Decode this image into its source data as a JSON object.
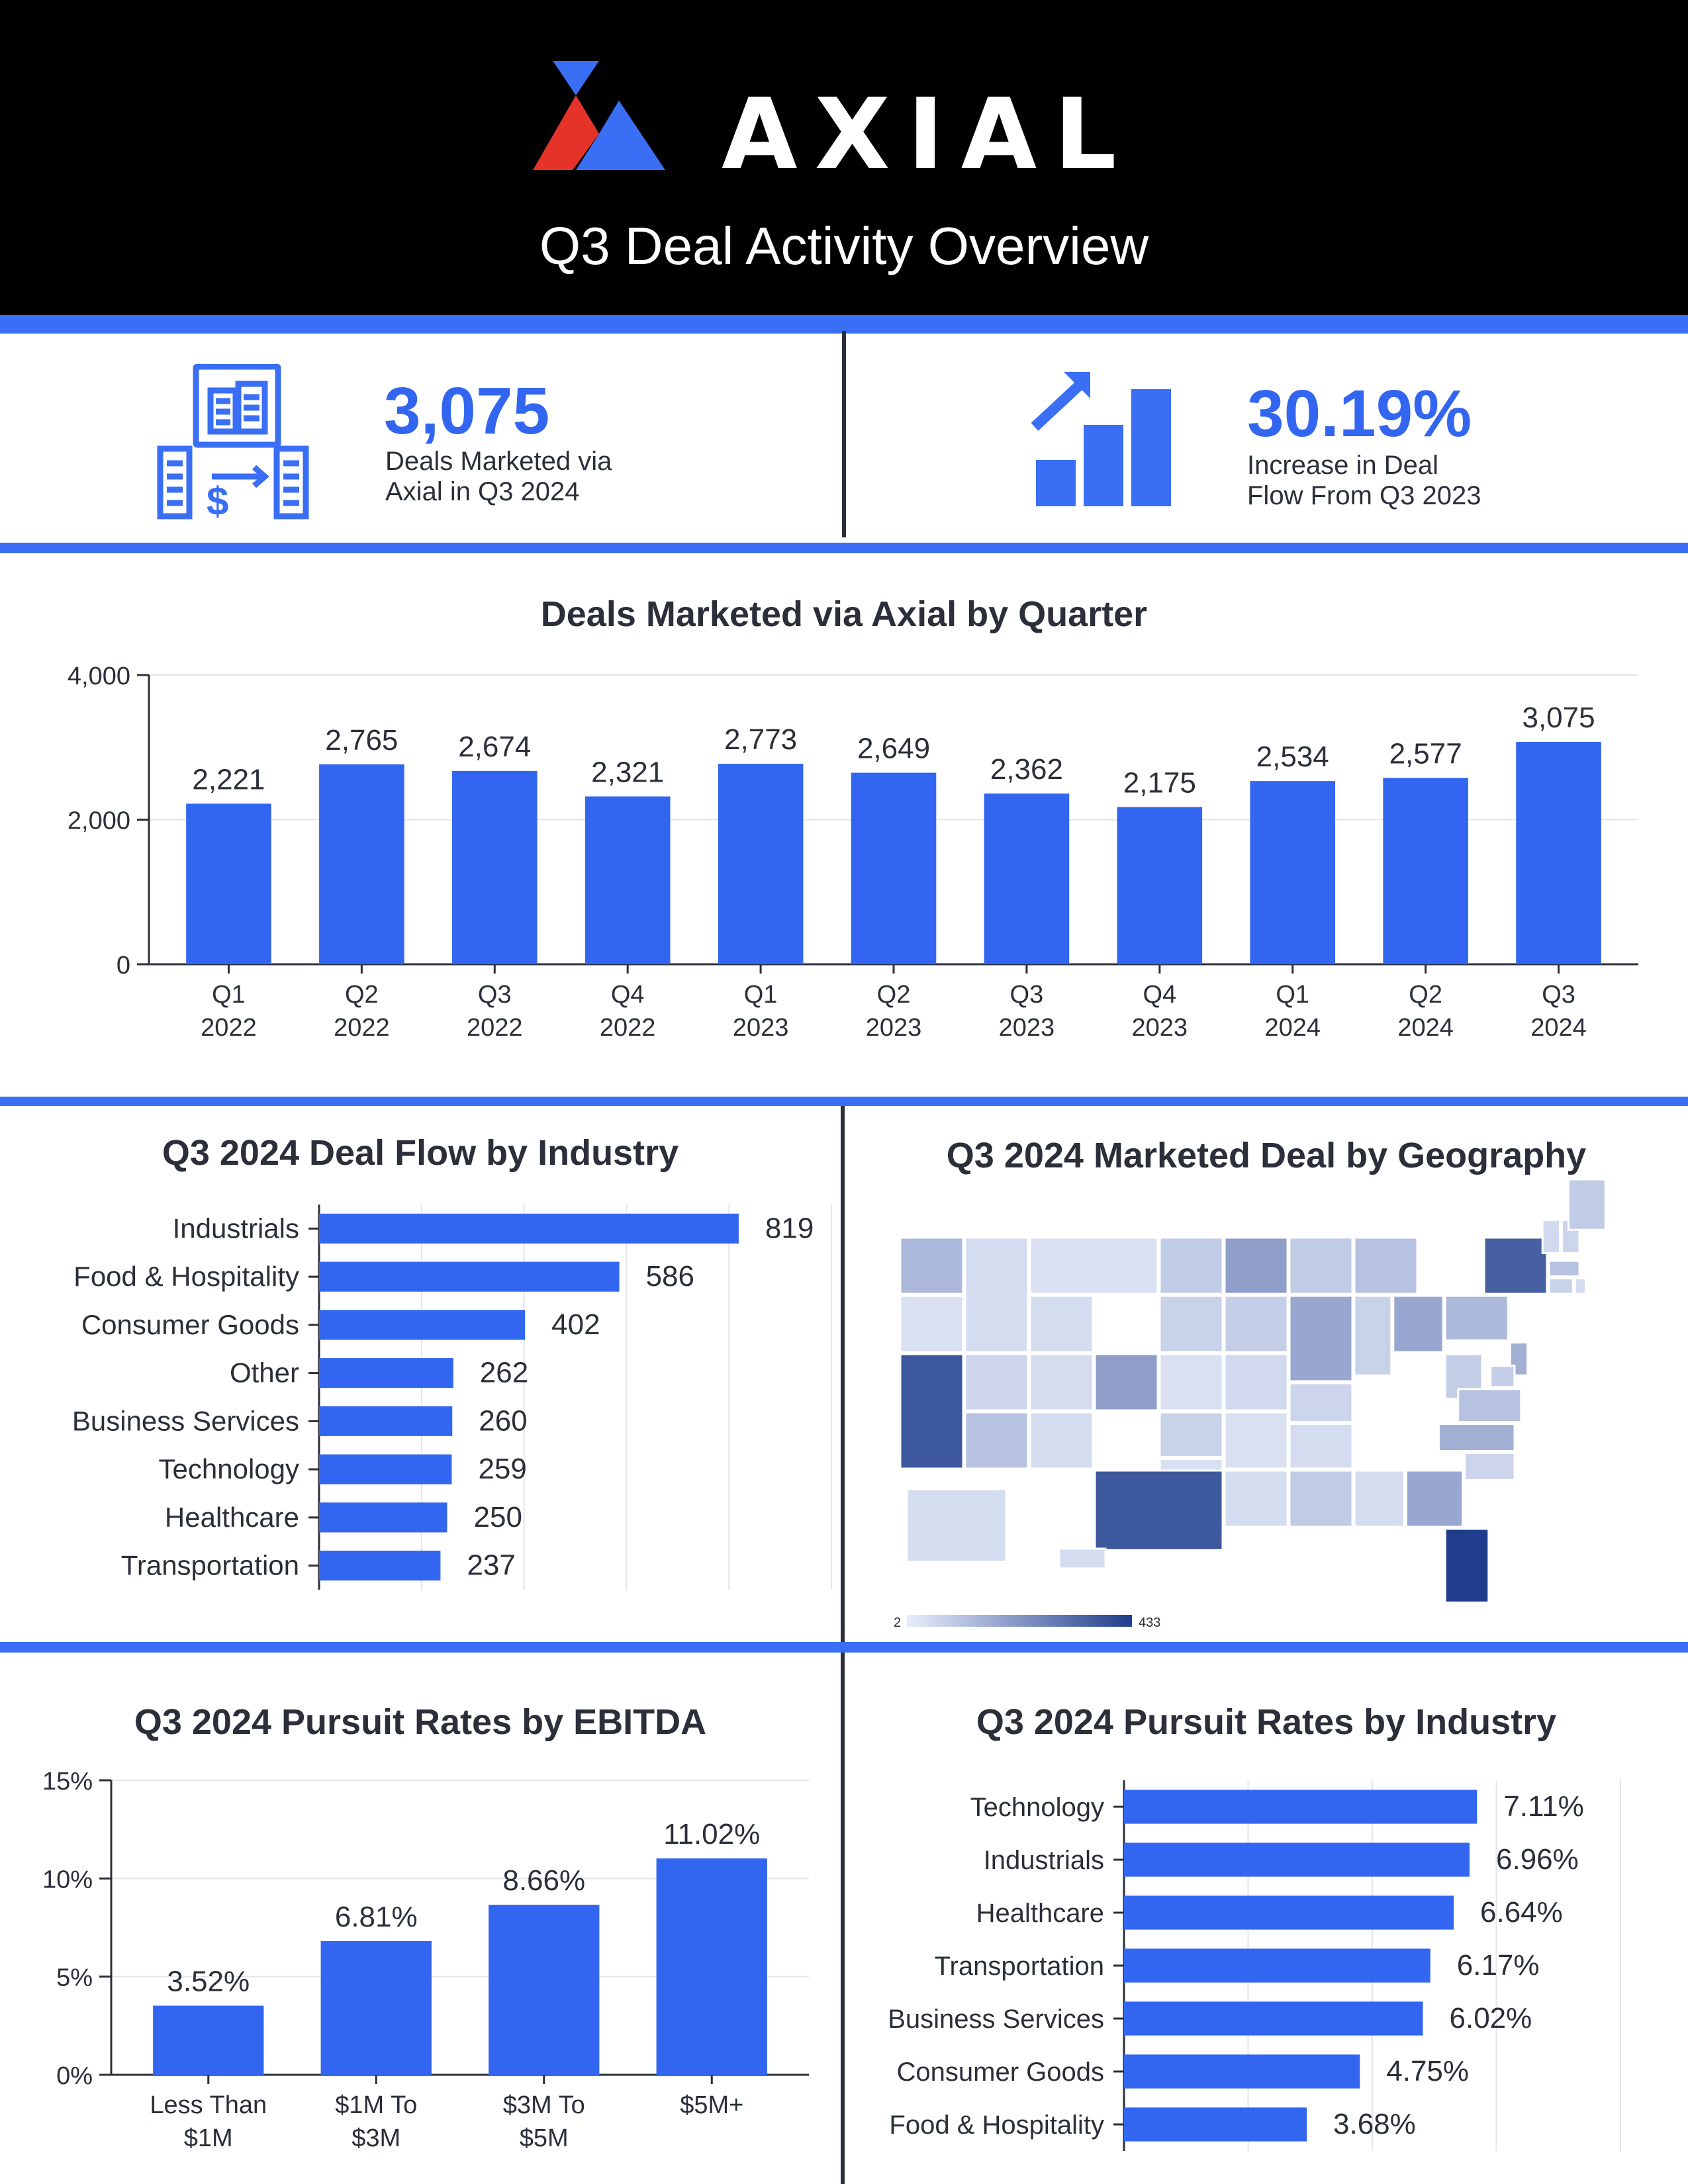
{
  "header": {
    "brand": "AXIAL",
    "title": "Q3 Deal Activity Overview"
  },
  "kpis": [
    {
      "value": "3,075",
      "label_line1": "Deals Marketed via",
      "label_line2": "Axial in Q3 2024",
      "icon": "buildings-exchange-icon"
    },
    {
      "value": "30.19%",
      "label_line1": "Increase in Deal",
      "label_line2": "Flow From Q3 2023",
      "icon": "growth-bar-arrow-icon"
    }
  ],
  "colors": {
    "accent": "#3366f0",
    "dark_text": "#2b2f3a",
    "logo_red": "#e5332a",
    "logo_blue": "#3a6ef5",
    "map_low": "#e8eefb",
    "map_high": "#1f3d8c"
  },
  "chart_data": [
    {
      "id": "quarterly",
      "type": "bar",
      "title": "Deals Marketed via Axial by Quarter",
      "categories": [
        [
          "Q1",
          "2022"
        ],
        [
          "Q2",
          "2022"
        ],
        [
          "Q3",
          "2022"
        ],
        [
          "Q4",
          "2022"
        ],
        [
          "Q1",
          "2023"
        ],
        [
          "Q2",
          "2023"
        ],
        [
          "Q3",
          "2023"
        ],
        [
          "Q4",
          "2023"
        ],
        [
          "Q1",
          "2024"
        ],
        [
          "Q2",
          "2024"
        ],
        [
          "Q3",
          "2024"
        ]
      ],
      "values": [
        2221,
        2765,
        2674,
        2321,
        2773,
        2649,
        2362,
        2175,
        2534,
        2577,
        3075
      ],
      "value_labels": [
        "2,221",
        "2,765",
        "2,674",
        "2,321",
        "2,773",
        "2,649",
        "2,362",
        "2,175",
        "2,534",
        "2,577",
        "3,075"
      ],
      "ylim": [
        0,
        4000
      ],
      "yticks": [
        0,
        2000,
        4000
      ],
      "ytick_labels": [
        "0",
        "2,000",
        "4,000"
      ],
      "grid": true
    },
    {
      "id": "industry_flow",
      "type": "bar",
      "orientation": "horizontal",
      "title": "Q3 2024 Deal Flow by Industry",
      "categories": [
        "Industrials",
        "Food & Hospitality",
        "Consumer Goods",
        "Other",
        "Business Services",
        "Technology",
        "Healthcare",
        "Transportation"
      ],
      "values": [
        819,
        586,
        402,
        262,
        260,
        259,
        250,
        237
      ],
      "value_labels": [
        "819",
        "586",
        "402",
        "262",
        "260",
        "259",
        "250",
        "237"
      ],
      "xlim": [
        0,
        1000
      ],
      "grid": true
    },
    {
      "id": "geography",
      "type": "heatmap",
      "title": "Q3 2024 Marketed Deal by Geography",
      "scale_min": "2",
      "scale_max": "433",
      "states": {
        "CA": 0.85,
        "TX": 0.85,
        "FL": 1.0,
        "NY": 0.8,
        "CO": 0.45,
        "MN": 0.45,
        "IL": 0.4,
        "OH": 0.4,
        "GA": 0.4,
        "NC": 0.35,
        "PA": 0.3,
        "WA": 0.3,
        "MI": 0.25,
        "NJ": 0.35,
        "AZ": 0.25,
        "MA": 0.25,
        "VA": 0.25
      }
    },
    {
      "id": "ebitda",
      "type": "bar",
      "title": "Q3 2024 Pursuit Rates by EBITDA",
      "categories": [
        [
          "Less Than",
          "$1M"
        ],
        [
          "$1M To",
          "$3M"
        ],
        [
          "$3M To",
          "$5M"
        ],
        [
          "$5M+"
        ]
      ],
      "values": [
        3.52,
        6.81,
        8.66,
        11.02
      ],
      "value_labels": [
        "3.52%",
        "6.81%",
        "8.66%",
        "11.02%"
      ],
      "ylim": [
        0,
        15
      ],
      "yticks": [
        0,
        5,
        10,
        15
      ],
      "ytick_labels": [
        "0%",
        "5%",
        "10%",
        "15%"
      ],
      "grid": true
    },
    {
      "id": "industry_pursuit",
      "type": "bar",
      "orientation": "horizontal",
      "title": "Q3 2024 Pursuit Rates by Industry",
      "categories": [
        "Technology",
        "Industrials",
        "Healthcare",
        "Transportation",
        "Business Services",
        "Consumer Goods",
        "Food & Hospitality"
      ],
      "values": [
        7.11,
        6.96,
        6.64,
        6.17,
        6.02,
        4.75,
        3.68
      ],
      "value_labels": [
        "7.11%",
        "6.96%",
        "6.64%",
        "6.17%",
        "6.02%",
        "4.75%",
        "3.68%"
      ],
      "xlim": [
        0,
        10
      ],
      "grid": true
    }
  ]
}
